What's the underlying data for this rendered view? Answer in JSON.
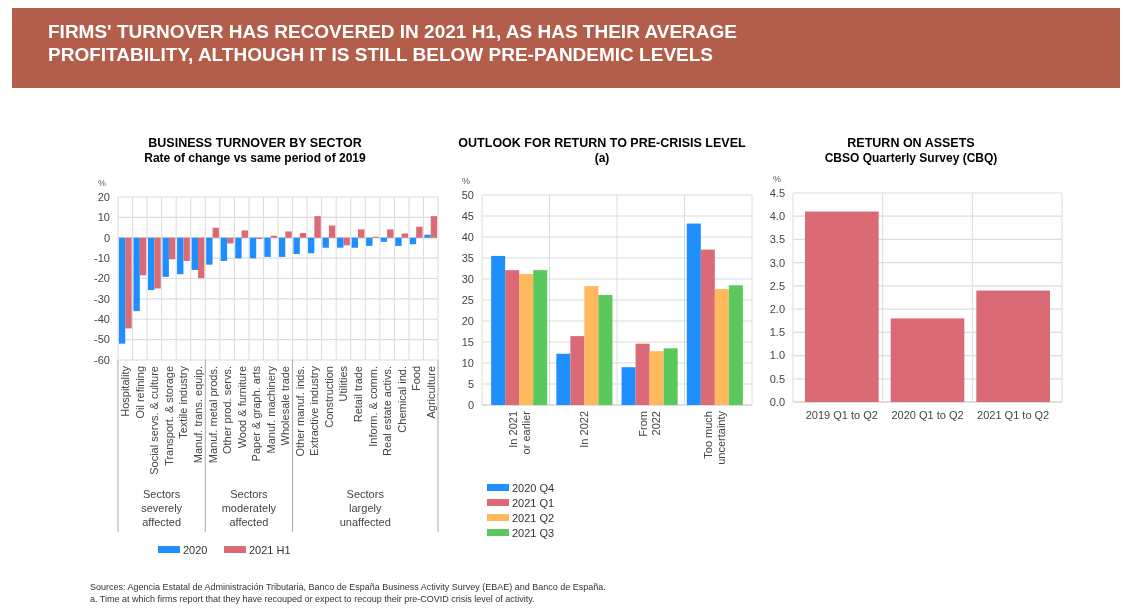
{
  "chart_data": [
    {
      "type": "bar",
      "title": "BUSINESS TURNOVER BY SECTOR",
      "subtitle": "Rate of change vs same period of 2019",
      "ylabel": "%",
      "categories": [
        "Hospitality",
        "Oil refining",
        "Social servs. & culture",
        "Transport. & storage",
        "Textile industry",
        "Manuf. trans. equip.",
        "Manuf. metal prods.",
        "Other prod. servs.",
        "Wood & furniture",
        "Paper & graph. arts",
        "Manuf. machinery",
        "Wholesale trade",
        "Other manuf. inds.",
        "Extractive industry",
        "Construction",
        "Utilities",
        "Retail trade",
        "Inform. & comm.",
        "Real estate activs.",
        "Chemical ind.",
        "Food",
        "Agriculture"
      ],
      "series": [
        {
          "name": "2020",
          "color": "#1f8fff",
          "values": [
            -52,
            -36,
            -25.7,
            -19.2,
            -17.9,
            -15.8,
            -13.2,
            -11.4,
            -10.1,
            -10.1,
            -9.4,
            -9.4,
            -8,
            -7.6,
            -4.9,
            -4.9,
            -4.9,
            -4,
            -2,
            -4,
            -3.2,
            1.5
          ]
        },
        {
          "name": "2021 H1",
          "color": "#d96a76",
          "values": [
            -44.5,
            -18.4,
            -24.9,
            -10.6,
            -11.4,
            -19.8,
            4.9,
            -2.8,
            3.6,
            -0.6,
            1,
            3.1,
            2.3,
            10.6,
            6,
            -3.7,
            4.1,
            0.5,
            4.1,
            2.1,
            5.4,
            10.6
          ]
        }
      ],
      "ylim": [
        -60,
        20
      ],
      "yticks": [
        -60,
        -50,
        -40,
        -30,
        -20,
        -10,
        0,
        10,
        20
      ],
      "grid": true,
      "legend": "bottom",
      "annotations": [
        "FIRMS' TURNOVER HAS RECOVERED IN 2021 H1, AS HAS THEIR AVERAGE\nPROFITABILITY, ALTHOUGH IT IS STILL BELOW PRE-PANDEMIC LEVELS",
        "Sources: Agencia Estatal de Administración Tributaria, Banco de España Business Activity Survey (EBAE) and Banco de España.",
        "a. Time at which firms report that they have recouped or expect to recoup their pre-COVID crisis level of activity.",
        "Sectors\nseverely\naffected",
        "Sectors\nmoderately\naffected",
        "Sectors\nlargely\nunaffected"
      ]
    },
    {
      "type": "bar",
      "title": "OUTLOOK FOR RETURN TO PRE-CRISIS LEVEL",
      "subtitle": "(a)",
      "ylabel": "%",
      "categories": [
        "In 2021\nor earlier",
        "In 2022",
        "From\n2022",
        "Too much\nuncertainty"
      ],
      "series": [
        {
          "name": "2020 Q4",
          "color": "#1f8fff",
          "values": [
            35.5,
            12.2,
            9.0,
            43.2
          ]
        },
        {
          "name": "2021 Q1",
          "color": "#d96a76",
          "values": [
            32.1,
            16.4,
            14.6,
            37.0
          ]
        },
        {
          "name": "2021 Q2",
          "color": "#ffb85c",
          "values": [
            31.2,
            28.3,
            12.8,
            27.6
          ]
        },
        {
          "name": "2021 Q3",
          "color": "#5ac85a",
          "values": [
            32.1,
            26.2,
            13.5,
            28.5
          ]
        }
      ],
      "ylim": [
        0,
        50
      ],
      "yticks": [
        0,
        5,
        10,
        15,
        20,
        25,
        30,
        35,
        40,
        45,
        50
      ],
      "grid": true,
      "legend": "bottom"
    },
    {
      "type": "bar",
      "title": "RETURN ON ASSETS",
      "subtitle": "CBSO Quarterly Survey (CBQ)",
      "ylabel": "%",
      "categories": [
        "2019 Q1 to Q2",
        "2020 Q1 to Q2",
        "2021 Q1 to Q2"
      ],
      "values": [
        4.1,
        1.8,
        2.4
      ],
      "color": "#d96a76",
      "ylim": [
        0,
        4.5
      ],
      "yticks": [
        {
          "value": 0,
          "label": "0.0"
        },
        0.5,
        {
          "value": 1,
          "label": "1.0"
        },
        1.5,
        {
          "value": 2,
          "label": "2.0"
        },
        2.5,
        {
          "value": 3,
          "label": "3.0"
        },
        3.5,
        {
          "value": 4,
          "label": "4.0"
        },
        4.5
      ],
      "grid": true
    }
  ]
}
